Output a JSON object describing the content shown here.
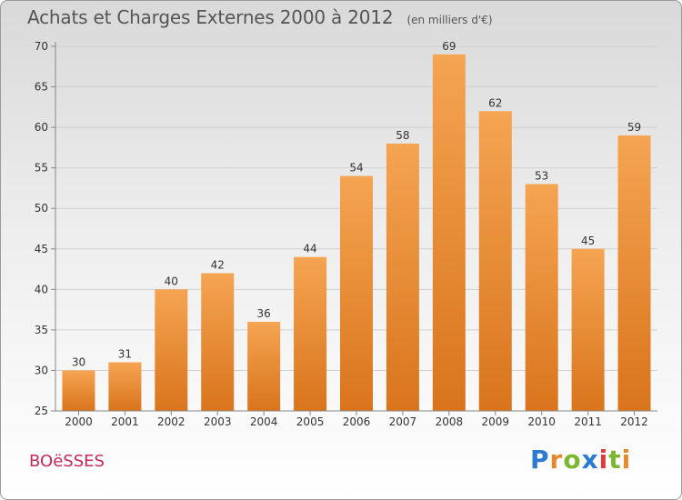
{
  "header": {
    "title": "Achats et Charges Externes 2000 à 2012",
    "subtitle": "(en milliers d'€)"
  },
  "footer": {
    "place": "BOëSSES",
    "brand": {
      "letters": [
        "P",
        "r",
        "o",
        "x",
        "i",
        "t",
        "i"
      ],
      "colors": [
        "#2b7bd1",
        "#e8882b",
        "#7cb82f",
        "#2b7bd1",
        "#e03b3b",
        "#7cb82f",
        "#e8882b"
      ]
    }
  },
  "chart_data": {
    "type": "bar",
    "title": "Achats et Charges Externes 2000 à 2012",
    "subtitle": "(en milliers d'€)",
    "xlabel": "",
    "ylabel": "",
    "categories": [
      "2000",
      "2001",
      "2002",
      "2003",
      "2004",
      "2005",
      "2006",
      "2007",
      "2008",
      "2009",
      "2010",
      "2011",
      "2012"
    ],
    "values": [
      30,
      31,
      40,
      42,
      36,
      44,
      54,
      58,
      69,
      62,
      53,
      45,
      59
    ],
    "ylim": [
      25,
      70
    ],
    "yticks": [
      25,
      30,
      35,
      40,
      45,
      50,
      55,
      60,
      65,
      70
    ],
    "grid": true,
    "legend": "none",
    "colors": {
      "bar_top": "#f5a452",
      "bar_bottom": "#d9741c",
      "axis": "#888888",
      "grid": "#cfcfcf",
      "text": "#333333"
    }
  }
}
